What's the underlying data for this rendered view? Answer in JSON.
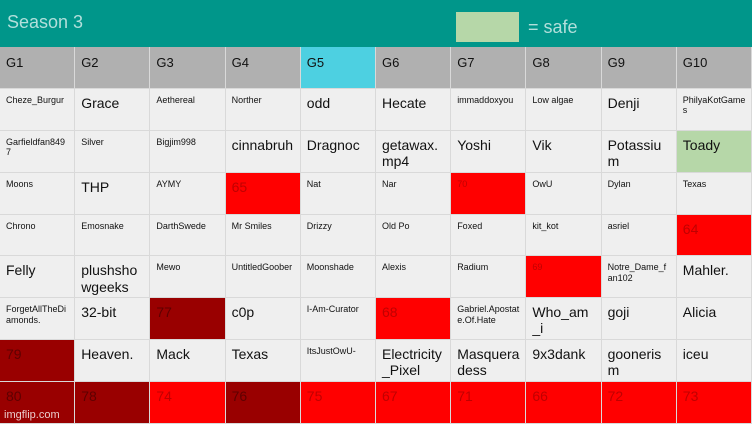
{
  "header": {
    "title": "Season 3",
    "legend": {
      "color": "#b6d7a8",
      "label": "= safe"
    }
  },
  "fills": {
    "red": {
      "bg": "#ff0000",
      "fg": "#c00000"
    },
    "dark": {
      "bg": "#990000",
      "fg": "#5e0000"
    },
    "green": {
      "bg": "#b6d7a8",
      "fg": "#111111"
    },
    "cyan": {
      "bg": "#4dd0e1",
      "fg": "#111111"
    }
  },
  "table": {
    "columns": [
      {
        "text": "G1"
      },
      {
        "text": "G2"
      },
      {
        "text": "G3"
      },
      {
        "text": "G4"
      },
      {
        "text": "G5",
        "fill": "cyan"
      },
      {
        "text": "G6"
      },
      {
        "text": "G7"
      },
      {
        "text": "G8"
      },
      {
        "text": "G9"
      },
      {
        "text": "G10"
      }
    ],
    "rows": [
      [
        {
          "text": "Cheze_Burgur",
          "small": true
        },
        {
          "text": "Grace"
        },
        {
          "text": "Aethereal",
          "small": true
        },
        {
          "text": "Norther",
          "small": true
        },
        {
          "text": "odd"
        },
        {
          "text": "Hecate"
        },
        {
          "text": "immaddoxyou",
          "small": true
        },
        {
          "text": "Low algae",
          "small": true
        },
        {
          "text": "Denji"
        },
        {
          "text": "PhilyaKotGames",
          "small": true
        }
      ],
      [
        {
          "text": "Garfieldfan8497",
          "small": true
        },
        {
          "text": "Silver",
          "small": true
        },
        {
          "text": "Bigjim998",
          "small": true
        },
        {
          "text": "cinnabruh"
        },
        {
          "text": "Dragnoc"
        },
        {
          "text": "getawax.mp4"
        },
        {
          "text": "Yoshi"
        },
        {
          "text": "Vik"
        },
        {
          "text": "Potassium"
        },
        {
          "text": "Toady",
          "fill": "green"
        }
      ],
      [
        {
          "text": "Moons",
          "small": true
        },
        {
          "text": "THP"
        },
        {
          "text": "AYMY",
          "small": true
        },
        {
          "text": "65",
          "fill": "red"
        },
        {
          "text": "Nat",
          "small": true
        },
        {
          "text": "Nar",
          "small": true
        },
        {
          "text": "70",
          "fill": "red",
          "small": true
        },
        {
          "text": "OwU",
          "small": true
        },
        {
          "text": "Dylan",
          "small": true
        },
        {
          "text": "Texas",
          "small": true
        }
      ],
      [
        {
          "text": "Chrono",
          "small": true
        },
        {
          "text": "Emosnake",
          "small": true
        },
        {
          "text": "DarthSwede",
          "small": true
        },
        {
          "text": "Mr Smiles",
          "small": true
        },
        {
          "text": "Drizzy",
          "small": true
        },
        {
          "text": "Old Po",
          "small": true
        },
        {
          "text": "Foxed",
          "small": true
        },
        {
          "text": "kit_kot",
          "small": true
        },
        {
          "text": "asriel",
          "small": true
        },
        {
          "text": "64",
          "fill": "red"
        }
      ],
      [
        {
          "text": "Felly"
        },
        {
          "text": "plushshowgeeks"
        },
        {
          "text": "Mewo",
          "small": true
        },
        {
          "text": "UntitledGoober",
          "small": true
        },
        {
          "text": "Moonshade",
          "small": true
        },
        {
          "text": "Alexis",
          "small": true
        },
        {
          "text": "Radium",
          "small": true
        },
        {
          "text": "69",
          "fill": "red",
          "small": true
        },
        {
          "text": "Notre_Dame_fan102",
          "small": true
        },
        {
          "text": "Mahler."
        }
      ],
      [
        {
          "text": "ForgetAllTheDiamonds.",
          "small": true
        },
        {
          "text": "32-bit"
        },
        {
          "text": "77",
          "fill": "dark"
        },
        {
          "text": "c0p"
        },
        {
          "text": "I-Am-Curator",
          "small": true
        },
        {
          "text": "68",
          "fill": "red"
        },
        {
          "text": "Gabriel.Apostate.Of.Hate",
          "small": true
        },
        {
          "text": "Who_am_i"
        },
        {
          "text": "goji"
        },
        {
          "text": "Alicia"
        }
      ],
      [
        {
          "text": "79",
          "fill": "dark"
        },
        {
          "text": "Heaven."
        },
        {
          "text": "Mack"
        },
        {
          "text": "Texas"
        },
        {
          "text": "ItsJustOwU-",
          "small": true
        },
        {
          "text": "Electricity_Pixel"
        },
        {
          "text": "Masqueradess"
        },
        {
          "text": "9x3dank"
        },
        {
          "text": "goonerism"
        },
        {
          "text": "iceu"
        }
      ],
      [
        {
          "text": "80",
          "fill": "dark"
        },
        {
          "text": "78",
          "fill": "dark"
        },
        {
          "text": "74",
          "fill": "red"
        },
        {
          "text": "76",
          "fill": "dark"
        },
        {
          "text": "75",
          "fill": "red"
        },
        {
          "text": "67",
          "fill": "red"
        },
        {
          "text": "71",
          "fill": "red"
        },
        {
          "text": "66",
          "fill": "red"
        },
        {
          "text": "72",
          "fill": "red"
        },
        {
          "text": "73",
          "fill": "red"
        }
      ]
    ]
  },
  "footer": {
    "watermark": "imgflip.com"
  }
}
